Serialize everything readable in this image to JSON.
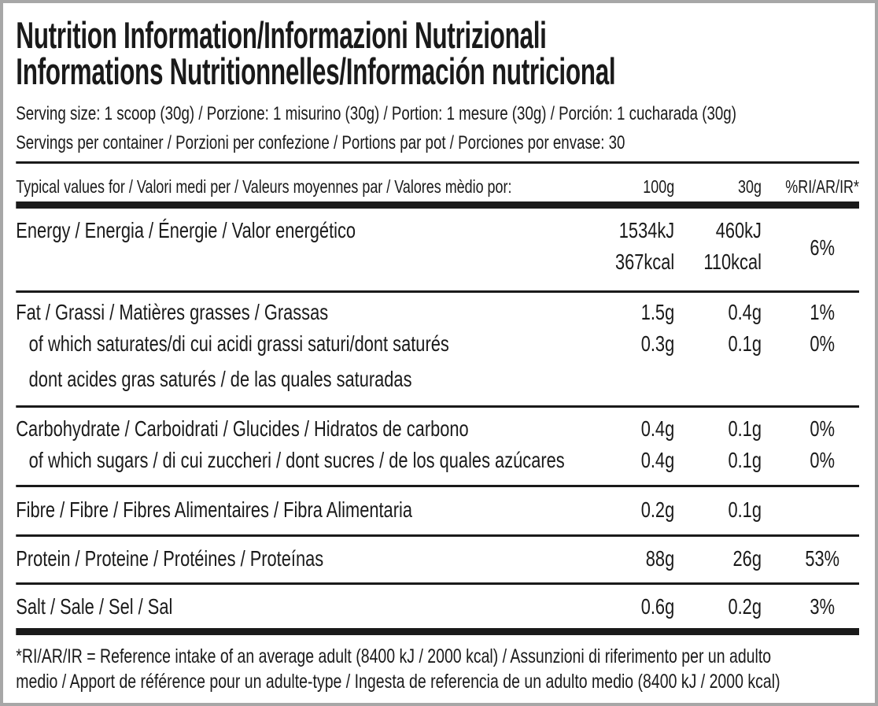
{
  "title": {
    "line1": "Nutrition Information/Informazioni Nutrizionali",
    "line2": "Informations Nutritionnelles/Información nutricional"
  },
  "serving_size": "Serving size: 1 scoop (30g) / Porzione: 1 misurino (30g) / Portion: 1 mesure (30g) / Porción: 1 cucharada (30g)",
  "servings_per_container": "Servings per container / Porzioni per confezione / Portions par pot / Porciones por envase: 30",
  "table": {
    "header": {
      "label": "Typical values for / Valori medi per / Valeurs moyennes par / Valores mèdio por:",
      "col_100g": "100g",
      "col_30g": "30g",
      "col_ri": "%RI/AR/IR*"
    },
    "energy": {
      "label": "Energy / Energia / Énergie / Valor energético",
      "kj_100g": "1534kJ",
      "kcal_100g": "367kcal",
      "kj_30g": "460kJ",
      "kcal_30g": "110kcal",
      "ri": "6%"
    },
    "fat": {
      "label": "Fat / Grassi / Matières grasses / Grassas",
      "v100": "1.5g",
      "v30": "0.4g",
      "ri": "1%"
    },
    "saturates": {
      "label1": "of which saturates/di cui acidi grassi saturi/dont saturés",
      "label2": "dont acides gras saturés / de las quales saturadas",
      "v100": "0.3g",
      "v30": "0.1g",
      "ri": "0%"
    },
    "carbohydrate": {
      "label": "Carbohydrate / Carboidrati / Glucides / Hidratos de carbono",
      "v100": "0.4g",
      "v30": "0.1g",
      "ri": "0%"
    },
    "sugars": {
      "label": "of which sugars / di cui zuccheri / dont sucres / de los quales azúcares",
      "v100": "0.4g",
      "v30": "0.1g",
      "ri": "0%"
    },
    "fibre": {
      "label": "Fibre / Fibre / Fibres Alimentaires / Fibra Alimentaria",
      "v100": "0.2g",
      "v30": "0.1g"
    },
    "protein": {
      "label": "Protein / Proteine / Protéines / Proteínas",
      "v100": "88g",
      "v30": "26g",
      "ri": "53%"
    },
    "salt": {
      "label": "Salt / Sale / Sel / Sal",
      "v100": "0.6g",
      "v30": "0.2g",
      "ri": "3%"
    }
  },
  "footnote": {
    "line1": "*RI/AR/IR = Reference intake of an average adult (8400 kJ / 2000 kcal)  / Assunzioni di riferimento per un adulto",
    "line2": "medio / Apport de référence pour un adulte-type / Ingesta de referencia de un adulto medio (8400 kJ / 2000 kcal)"
  },
  "colors": {
    "text": "#1a1a1a",
    "border": "#a7a7a7",
    "background": "#ffffff"
  }
}
